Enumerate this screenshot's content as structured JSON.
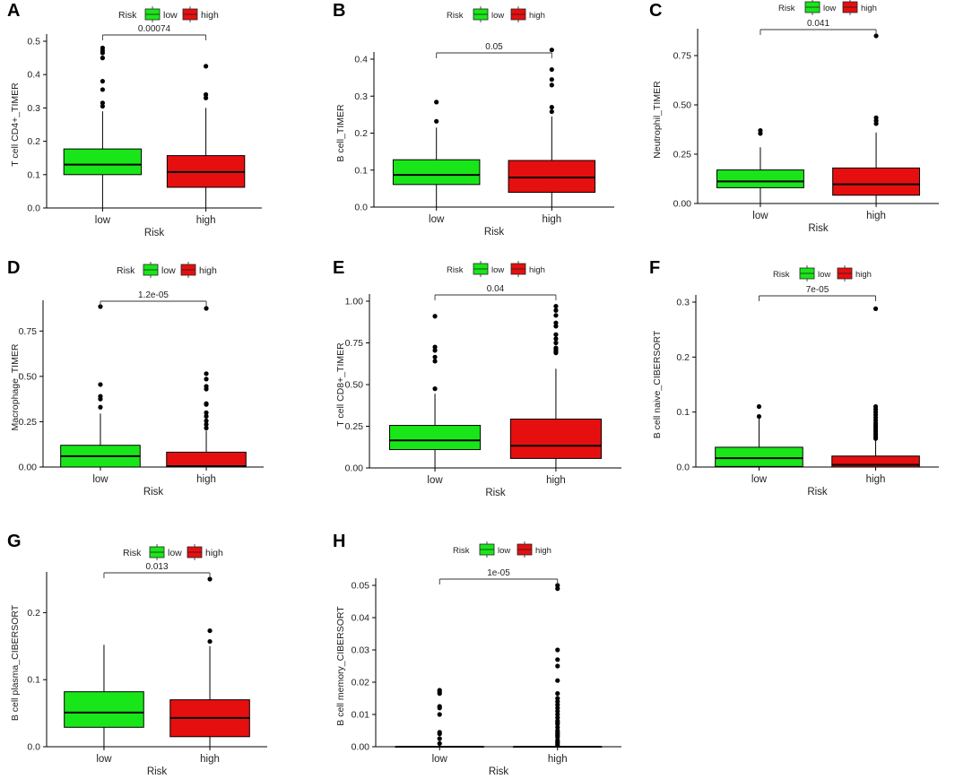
{
  "figure": {
    "legend_title": "Risk",
    "legend_items": [
      {
        "label": "low",
        "color": "#19e619"
      },
      {
        "label": "high",
        "color": "#e60f0f"
      }
    ],
    "x_label": "Risk",
    "categories": [
      "low",
      "high"
    ]
  },
  "chart_data": [
    {
      "panel": "A",
      "type": "boxplot",
      "ylabel": "T cell CD4+_TIMER",
      "ylim": [
        0,
        0.5
      ],
      "yticks": [
        "0.0",
        "0.1",
        "0.2",
        "0.3",
        "0.4",
        "0.5"
      ],
      "p_value": "0.00074",
      "series": [
        {
          "category": "low",
          "q1": 0.1,
          "median": 0.13,
          "q3": 0.177,
          "whisker_low": 0.0,
          "whisker_high": 0.29,
          "outliers": [
            0.305,
            0.315,
            0.355,
            0.38,
            0.45,
            0.465,
            0.472,
            0.48
          ]
        },
        {
          "category": "high",
          "q1": 0.062,
          "median": 0.108,
          "q3": 0.157,
          "whisker_low": 0.0,
          "whisker_high": 0.3,
          "outliers": [
            0.33,
            0.34,
            0.425
          ]
        }
      ]
    },
    {
      "panel": "B",
      "type": "boxplot",
      "ylabel": "B cell_TIMER",
      "ylim": [
        0,
        0.4
      ],
      "yticks": [
        "0.0",
        "0.1",
        "0.2",
        "0.3",
        "0.4"
      ],
      "p_value": "0.05",
      "series": [
        {
          "category": "low",
          "q1": 0.061,
          "median": 0.087,
          "q3": 0.128,
          "whisker_low": 0.0,
          "whisker_high": 0.215,
          "outliers": [
            0.232,
            0.284
          ]
        },
        {
          "category": "high",
          "q1": 0.04,
          "median": 0.08,
          "q3": 0.126,
          "whisker_low": 0.0,
          "whisker_high": 0.245,
          "outliers": [
            0.258,
            0.27,
            0.33,
            0.345,
            0.372,
            0.425
          ]
        }
      ]
    },
    {
      "panel": "C",
      "type": "boxplot",
      "ylabel": "Neutrophil_TIMER",
      "ylim": [
        0,
        0.85
      ],
      "yticks": [
        "0.00",
        "0.25",
        "0.50",
        "0.75"
      ],
      "p_value": "0.041",
      "series": [
        {
          "category": "low",
          "q1": 0.08,
          "median": 0.112,
          "q3": 0.17,
          "whisker_low": 0.0,
          "whisker_high": 0.285,
          "outliers": [
            0.355,
            0.37
          ]
        },
        {
          "category": "high",
          "q1": 0.042,
          "median": 0.097,
          "q3": 0.18,
          "whisker_low": 0.0,
          "whisker_high": 0.36,
          "outliers": [
            0.405,
            0.42,
            0.435,
            0.85
          ]
        }
      ]
    },
    {
      "panel": "D",
      "type": "boxplot",
      "ylabel": "Macrophage_TIMER",
      "ylim": [
        0,
        0.88
      ],
      "yticks": [
        "0.00",
        "0.25",
        "0.50",
        "0.75"
      ],
      "p_value": "1.2e-05",
      "series": [
        {
          "category": "low",
          "q1": 0.0,
          "median": 0.06,
          "q3": 0.12,
          "whisker_low": 0.0,
          "whisker_high": 0.295,
          "outliers": [
            0.33,
            0.375,
            0.39,
            0.455,
            0.885
          ]
        },
        {
          "category": "high",
          "q1": 0.0,
          "median": 0.005,
          "q3": 0.082,
          "whisker_low": 0.0,
          "whisker_high": 0.2,
          "outliers": [
            0.215,
            0.235,
            0.255,
            0.28,
            0.3,
            0.345,
            0.35,
            0.43,
            0.445,
            0.485,
            0.515,
            0.875
          ]
        }
      ]
    },
    {
      "panel": "E",
      "type": "boxplot",
      "ylabel": "T cell CD8+_TIMER",
      "ylim": [
        0,
        1.0
      ],
      "yticks": [
        "0.00",
        "0.25",
        "0.50",
        "0.75",
        "1.00"
      ],
      "p_value": "0.04",
      "series": [
        {
          "category": "low",
          "q1": 0.11,
          "median": 0.165,
          "q3": 0.255,
          "whisker_low": 0.0,
          "whisker_high": 0.445,
          "outliers": [
            0.475,
            0.64,
            0.665,
            0.705,
            0.725,
            0.91
          ]
        },
        {
          "category": "high",
          "q1": 0.057,
          "median": 0.133,
          "q3": 0.293,
          "whisker_low": 0.0,
          "whisker_high": 0.595,
          "outliers": [
            0.69,
            0.7,
            0.71,
            0.72,
            0.75,
            0.775,
            0.8,
            0.85,
            0.87,
            0.915,
            0.945,
            0.97
          ]
        }
      ]
    },
    {
      "panel": "F",
      "type": "boxplot",
      "ylabel": "B cell naive_CIBERSORT",
      "ylim": [
        0,
        0.3
      ],
      "yticks": [
        "0.0",
        "0.1",
        "0.2",
        "0.3"
      ],
      "p_value": "7e-05",
      "series": [
        {
          "category": "low",
          "q1": 0.001,
          "median": 0.016,
          "q3": 0.036,
          "whisker_low": 0.0,
          "whisker_high": 0.088,
          "outliers": [
            0.092,
            0.11
          ]
        },
        {
          "category": "high",
          "q1": 0.0,
          "median": 0.004,
          "q3": 0.02,
          "whisker_low": 0.0,
          "whisker_high": 0.05,
          "outliers": [
            0.052,
            0.056,
            0.06,
            0.064,
            0.068,
            0.072,
            0.076,
            0.08,
            0.085,
            0.09,
            0.095,
            0.1,
            0.105,
            0.11,
            0.288
          ]
        }
      ]
    },
    {
      "panel": "G",
      "type": "boxplot",
      "ylabel": "B cell plasma_CIBERSORT",
      "ylim": [
        0,
        0.25
      ],
      "yticks": [
        "0.0",
        "0.1",
        "0.2"
      ],
      "p_value": "0.013",
      "series": [
        {
          "category": "low",
          "q1": 0.029,
          "median": 0.051,
          "q3": 0.082,
          "whisker_low": 0.0,
          "whisker_high": 0.152,
          "outliers": []
        },
        {
          "category": "high",
          "q1": 0.015,
          "median": 0.043,
          "q3": 0.07,
          "whisker_low": 0.0,
          "whisker_high": 0.15,
          "outliers": [
            0.157,
            0.173,
            0.25
          ]
        }
      ]
    },
    {
      "panel": "H",
      "type": "boxplot",
      "ylabel": "B cell memory_CIBERSORT",
      "ylim": [
        0,
        0.05
      ],
      "yticks": [
        "0.00",
        "0.01",
        "0.02",
        "0.03",
        "0.04",
        "0.05"
      ],
      "p_value": "1e-05",
      "series": [
        {
          "category": "low",
          "q1": 0.0,
          "median": 0.0,
          "q3": 0.0,
          "whisker_low": 0.0,
          "whisker_high": 0.0,
          "outliers": [
            0.001,
            0.0025,
            0.004,
            0.0045,
            0.01,
            0.012,
            0.0125,
            0.0165,
            0.017,
            0.0175
          ]
        },
        {
          "category": "high",
          "q1": 0.0,
          "median": 0.0,
          "q3": 0.0,
          "whisker_low": 0.0,
          "whisker_high": 0.0,
          "outliers": [
            0.0005,
            0.001,
            0.0015,
            0.002,
            0.003,
            0.0035,
            0.004,
            0.0045,
            0.005,
            0.006,
            0.007,
            0.0075,
            0.008,
            0.009,
            0.01,
            0.011,
            0.012,
            0.013,
            0.014,
            0.015,
            0.0165,
            0.0205,
            0.025,
            0.027,
            0.03,
            0.049,
            0.05
          ]
        }
      ]
    }
  ]
}
